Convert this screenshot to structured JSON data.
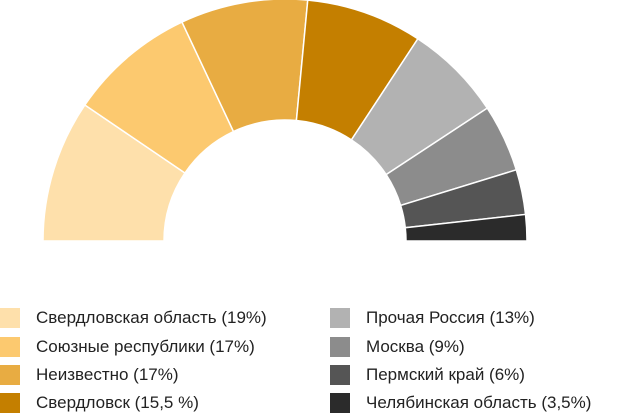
{
  "chart_data": {
    "type": "pie",
    "variant": "semicircle donut",
    "slices": [
      {
        "label": "Свердловская область (19%)",
        "value": 19,
        "color": "#fee0ab"
      },
      {
        "label": "Союзные республики (17%)",
        "value": 17,
        "color": "#fcc96f"
      },
      {
        "label": "Неизвестно (17%)",
        "value": 17,
        "color": "#e8ac42"
      },
      {
        "label": "Свердловск (15,5 %)",
        "value": 15.5,
        "color": "#c47f00"
      },
      {
        "label": "Прочая Россия (13%)",
        "value": 13,
        "color": "#b2b2b2"
      },
      {
        "label": "Москва (9%)",
        "value": 9,
        "color": "#8c8c8c"
      },
      {
        "label": "Пермский край (6%)",
        "value": 6,
        "color": "#555555"
      },
      {
        "label": "Челябинская область (3,5%)",
        "value": 3.5,
        "color": "#2b2b2b"
      }
    ],
    "legend_placement": "bottom, two columns"
  }
}
